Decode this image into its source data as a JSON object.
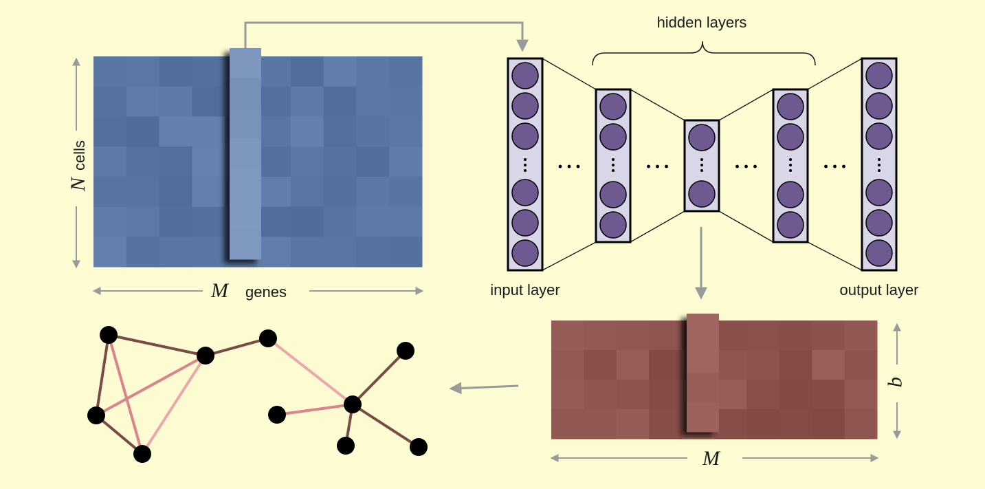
{
  "labels": {
    "cells_var": "N",
    "cells": "cells",
    "genes_var": "M",
    "genes": "genes",
    "hidden_layers": "hidden layers",
    "input_layer": "input layer",
    "output_layer": "output layer",
    "latent_width_var": "M",
    "latent_height_var": "q"
  },
  "colors": {
    "background": "#fdfbd2",
    "expression_matrix": "#5a76a4",
    "selected_column_blue": "#7b94bb",
    "latent_matrix": "#8e544f",
    "selected_column_red": "#9c625d",
    "neuron_fill": "#6e5a90",
    "layer_fill": "#d9d6e8",
    "arrow": "#9a9a9a",
    "node": "#000000",
    "edge_dark": "#7c4a44",
    "edge_medium": "#d9858a",
    "edge_light": "#eaa9a8"
  },
  "neural_network": {
    "layers": [
      {
        "name": "input-layer",
        "neurons_top": 3,
        "neurons_bottom": 3
      },
      {
        "name": "hidden-layer-1",
        "neurons_top": 2,
        "neurons_bottom": 2
      },
      {
        "name": "bottleneck-layer",
        "neurons_top": 1,
        "neurons_bottom": 1
      },
      {
        "name": "hidden-layer-3",
        "neurons_top": 2,
        "neurons_bottom": 2
      },
      {
        "name": "output-layer",
        "neurons_top": 3,
        "neurons_bottom": 3
      }
    ]
  },
  "graph": {
    "nodes": [
      "a",
      "b",
      "c",
      "d",
      "e",
      "f",
      "g",
      "h",
      "i",
      "j"
    ],
    "edges": [
      {
        "from": "a",
        "to": "b",
        "shade": "dark"
      },
      {
        "from": "a",
        "to": "d",
        "shade": "dark"
      },
      {
        "from": "a",
        "to": "e",
        "shade": "medium"
      },
      {
        "from": "b",
        "to": "c",
        "shade": "dark"
      },
      {
        "from": "b",
        "to": "d",
        "shade": "medium"
      },
      {
        "from": "b",
        "to": "e",
        "shade": "light"
      },
      {
        "from": "d",
        "to": "e",
        "shade": "dark"
      },
      {
        "from": "c",
        "to": "g",
        "shade": "light"
      },
      {
        "from": "f",
        "to": "g",
        "shade": "dark"
      },
      {
        "from": "h",
        "to": "g",
        "shade": "medium"
      },
      {
        "from": "g",
        "to": "i",
        "shade": "dark"
      },
      {
        "from": "g",
        "to": "j",
        "shade": "dark"
      }
    ]
  }
}
